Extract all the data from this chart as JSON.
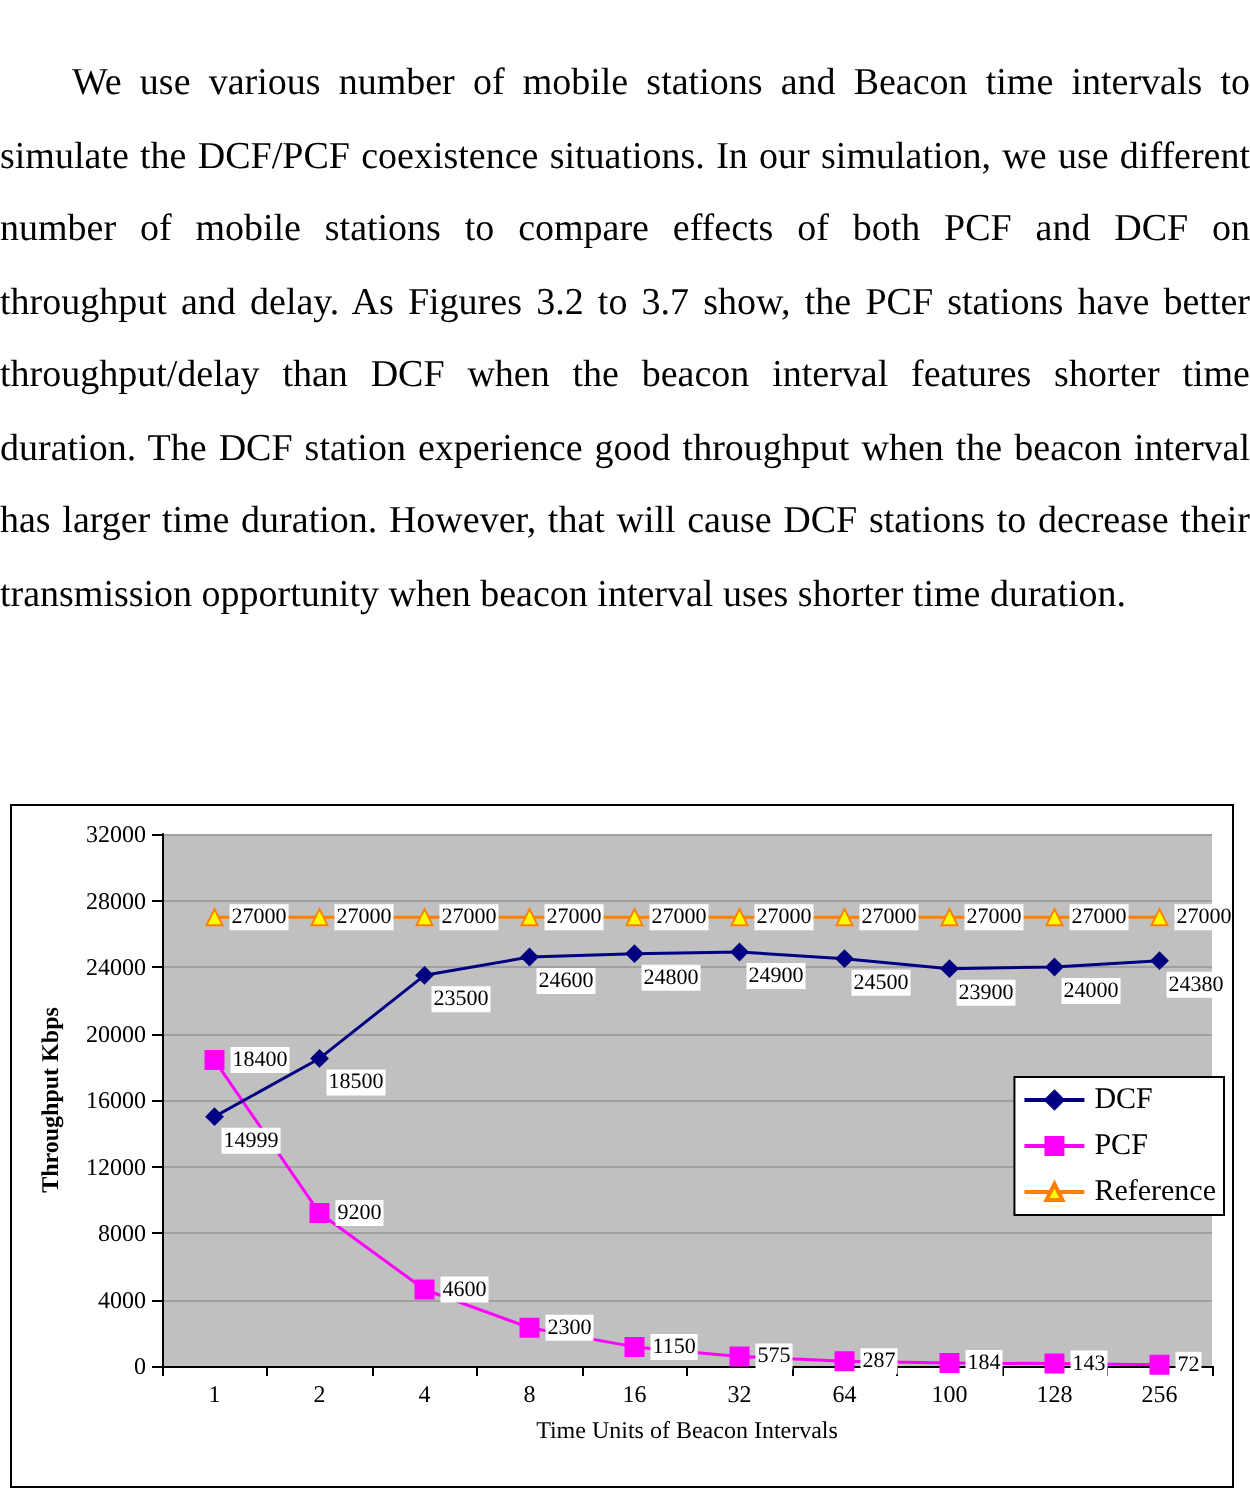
{
  "chart_data": {
    "type": "line",
    "annotations": [
      "We use various number of mobile stations and Beacon time intervals to simulate the DCF/PCF coexistence situations. In our simulation, we use different number of mobile stations to compare effects of both PCF and DCF on throughput and delay. As Figures 3.2 to 3.7 show, the PCF stations have better throughput/delay than DCF when the beacon interval features shorter time duration. The DCF station experience good throughput when the beacon interval has larger time duration. However, that will cause DCF stations to decrease their transmission opportunity when beacon interval uses shorter time duration."
    ],
    "xlabel": "Time Units of Beacon Intervals",
    "ylabel": "Throughput Kbps",
    "categories": [
      "1",
      "2",
      "4",
      "8",
      "16",
      "32",
      "64",
      "100",
      "128",
      "256"
    ],
    "series": [
      {
        "name": "DCF",
        "color": "#000080",
        "marker": "diamond",
        "values": [
          14999,
          18500,
          23500,
          24600,
          24800,
          24900,
          24500,
          23900,
          24000,
          24380
        ]
      },
      {
        "name": "PCF",
        "color": "#ff00ff",
        "marker": "square",
        "values": [
          18400,
          9200,
          4600,
          2300,
          1150,
          575,
          287,
          184,
          143,
          72
        ]
      },
      {
        "name": "Reference",
        "color": "#ff8000",
        "marker": "triangle",
        "values": [
          27000,
          27000,
          27000,
          27000,
          27000,
          27000,
          27000,
          27000,
          27000,
          27000
        ]
      }
    ],
    "ylim": [
      0,
      32000
    ],
    "yticks": [
      0,
      4000,
      8000,
      12000,
      16000,
      20000,
      24000,
      28000,
      32000
    ],
    "grid": "y",
    "legend": "right",
    "data_labels": true
  }
}
